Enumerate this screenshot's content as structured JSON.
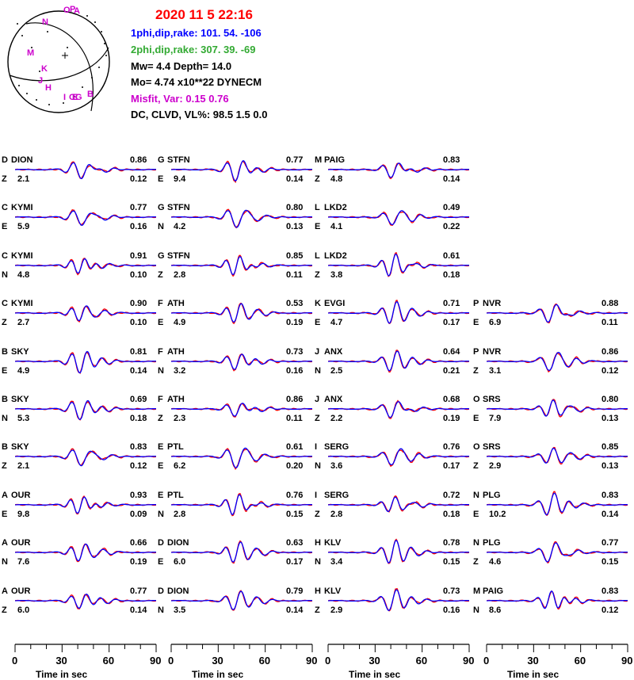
{
  "header": {
    "date": "2020 11  5    22:16",
    "plane1": "1phi,dip,rake: 101. 54. -106",
    "plane2": "2phi,dip,rake: 307. 39.  -69",
    "mw_depth": "Mw=   4.4     Depth=    14.0",
    "moment": "Mo=  4.74 x10**22 DYNECM",
    "misfit": "Misfit, Var:      0.15        0.76",
    "dc": "DC, CLVD, VL%:   98.5      1.5      0.0"
  },
  "beachball": {
    "labels": [
      "O",
      "P",
      "A",
      "N",
      "M",
      "K",
      "J",
      "H",
      "I",
      "C",
      "E",
      "G",
      "B"
    ],
    "colors": {
      "outline": "#000000",
      "label": "#cc00cc"
    }
  },
  "colors": {
    "observed": "#ff0000",
    "synthetic": "#0000ff"
  },
  "panels": [
    {
      "col": 0,
      "row": 0,
      "code": "D",
      "name": "DION",
      "comp": "Z",
      "dist": "2.1",
      "corr": "0.86",
      "amp": "0.12",
      "seed": 1
    },
    {
      "col": 0,
      "row": 1,
      "code": "C",
      "name": "KYMI",
      "comp": "E",
      "dist": "5.9",
      "corr": "0.77",
      "amp": "0.16",
      "seed": 2
    },
    {
      "col": 0,
      "row": 2,
      "code": "C",
      "name": "KYMI",
      "comp": "N",
      "dist": "4.8",
      "corr": "0.91",
      "amp": "0.10",
      "seed": 3
    },
    {
      "col": 0,
      "row": 3,
      "code": "C",
      "name": "KYMI",
      "comp": "Z",
      "dist": "2.7",
      "corr": "0.90",
      "amp": "0.10",
      "seed": 4
    },
    {
      "col": 0,
      "row": 4,
      "code": "B",
      "name": "SKY",
      "comp": "E",
      "dist": "4.9",
      "corr": "0.81",
      "amp": "0.14",
      "seed": 5
    },
    {
      "col": 0,
      "row": 5,
      "code": "B",
      "name": "SKY",
      "comp": "N",
      "dist": "5.3",
      "corr": "0.69",
      "amp": "0.18",
      "seed": 6
    },
    {
      "col": 0,
      "row": 6,
      "code": "B",
      "name": "SKY",
      "comp": "Z",
      "dist": "2.1",
      "corr": "0.83",
      "amp": "0.12",
      "seed": 7
    },
    {
      "col": 0,
      "row": 7,
      "code": "A",
      "name": "OUR",
      "comp": "E",
      "dist": "9.8",
      "corr": "0.93",
      "amp": "0.09",
      "seed": 8
    },
    {
      "col": 0,
      "row": 8,
      "code": "A",
      "name": "OUR",
      "comp": "N",
      "dist": "7.6",
      "corr": "0.66",
      "amp": "0.19",
      "seed": 9
    },
    {
      "col": 0,
      "row": 9,
      "code": "A",
      "name": "OUR",
      "comp": "Z",
      "dist": "6.0",
      "corr": "0.77",
      "amp": "0.14",
      "seed": 10
    },
    {
      "col": 1,
      "row": 0,
      "code": "G",
      "name": "STFN",
      "comp": "E",
      "dist": "9.4",
      "corr": "0.77",
      "amp": "0.14",
      "seed": 11
    },
    {
      "col": 1,
      "row": 1,
      "code": "G",
      "name": "STFN",
      "comp": "N",
      "dist": "4.2",
      "corr": "0.80",
      "amp": "0.13",
      "seed": 12
    },
    {
      "col": 1,
      "row": 2,
      "code": "G",
      "name": "STFN",
      "comp": "Z",
      "dist": "2.8",
      "corr": "0.85",
      "amp": "0.11",
      "seed": 13
    },
    {
      "col": 1,
      "row": 3,
      "code": "F",
      "name": "ATH",
      "comp": "E",
      "dist": "4.9",
      "corr": "0.53",
      "amp": "0.19",
      "seed": 14
    },
    {
      "col": 1,
      "row": 4,
      "code": "F",
      "name": "ATH",
      "comp": "N",
      "dist": "3.2",
      "corr": "0.73",
      "amp": "0.16",
      "seed": 15
    },
    {
      "col": 1,
      "row": 5,
      "code": "F",
      "name": "ATH",
      "comp": "Z",
      "dist": "2.3",
      "corr": "0.86",
      "amp": "0.11",
      "seed": 16
    },
    {
      "col": 1,
      "row": 6,
      "code": "E",
      "name": "PTL",
      "comp": "E",
      "dist": "6.2",
      "corr": "0.61",
      "amp": "0.20",
      "seed": 17
    },
    {
      "col": 1,
      "row": 7,
      "code": "E",
      "name": "PTL",
      "comp": "N",
      "dist": "2.8",
      "corr": "0.76",
      "amp": "0.15",
      "seed": 18
    },
    {
      "col": 1,
      "row": 8,
      "code": "D",
      "name": "DION",
      "comp": "E",
      "dist": "6.0",
      "corr": "0.63",
      "amp": "0.17",
      "seed": 19
    },
    {
      "col": 1,
      "row": 9,
      "code": "D",
      "name": "DION",
      "comp": "N",
      "dist": "3.5",
      "corr": "0.79",
      "amp": "0.14",
      "seed": 20
    },
    {
      "col": 2,
      "row": 0,
      "code": "M",
      "name": "PAIG",
      "comp": "Z",
      "dist": "4.8",
      "corr": "0.83",
      "amp": "0.14",
      "seed": 21
    },
    {
      "col": 2,
      "row": 1,
      "code": "L",
      "name": "LKD2",
      "comp": "E",
      "dist": "4.1",
      "corr": "0.49",
      "amp": "0.22",
      "seed": 22
    },
    {
      "col": 2,
      "row": 2,
      "code": "L",
      "name": "LKD2",
      "comp": "Z",
      "dist": "3.8",
      "corr": "0.61",
      "amp": "0.18",
      "seed": 23
    },
    {
      "col": 2,
      "row": 3,
      "code": "K",
      "name": "EVGI",
      "comp": "E",
      "dist": "4.7",
      "corr": "0.71",
      "amp": "0.17",
      "seed": 24
    },
    {
      "col": 2,
      "row": 4,
      "code": "J",
      "name": "ANX",
      "comp": "N",
      "dist": "2.5",
      "corr": "0.64",
      "amp": "0.21",
      "seed": 25
    },
    {
      "col": 2,
      "row": 5,
      "code": "J",
      "name": "ANX",
      "comp": "Z",
      "dist": "2.2",
      "corr": "0.68",
      "amp": "0.19",
      "seed": 26
    },
    {
      "col": 2,
      "row": 6,
      "code": "I",
      "name": "SERG",
      "comp": "N",
      "dist": "3.6",
      "corr": "0.76",
      "amp": "0.17",
      "seed": 27
    },
    {
      "col": 2,
      "row": 7,
      "code": "I",
      "name": "SERG",
      "comp": "Z",
      "dist": "2.8",
      "corr": "0.72",
      "amp": "0.18",
      "seed": 28
    },
    {
      "col": 2,
      "row": 8,
      "code": "H",
      "name": "KLV",
      "comp": "N",
      "dist": "3.4",
      "corr": "0.78",
      "amp": "0.15",
      "seed": 29
    },
    {
      "col": 2,
      "row": 9,
      "code": "H",
      "name": "KLV",
      "comp": "Z",
      "dist": "2.9",
      "corr": "0.73",
      "amp": "0.16",
      "seed": 30
    },
    {
      "col": 3,
      "row": 3,
      "code": "P",
      "name": "NVR",
      "comp": "E",
      "dist": "6.9",
      "corr": "0.88",
      "amp": "0.11",
      "seed": 31
    },
    {
      "col": 3,
      "row": 4,
      "code": "P",
      "name": "NVR",
      "comp": "Z",
      "dist": "3.1",
      "corr": "0.86",
      "amp": "0.12",
      "seed": 32
    },
    {
      "col": 3,
      "row": 5,
      "code": "O",
      "name": "SRS",
      "comp": "E",
      "dist": "7.9",
      "corr": "0.80",
      "amp": "0.13",
      "seed": 33
    },
    {
      "col": 3,
      "row": 6,
      "code": "O",
      "name": "SRS",
      "comp": "Z",
      "dist": "2.9",
      "corr": "0.85",
      "amp": "0.13",
      "seed": 34
    },
    {
      "col": 3,
      "row": 7,
      "code": "N",
      "name": "PLG",
      "comp": "E",
      "dist": "10.2",
      "corr": "0.83",
      "amp": "0.14",
      "seed": 35
    },
    {
      "col": 3,
      "row": 8,
      "code": "N",
      "name": "PLG",
      "comp": "Z",
      "dist": "4.6",
      "corr": "0.77",
      "amp": "0.15",
      "seed": 36
    },
    {
      "col": 3,
      "row": 9,
      "code": "M",
      "name": "PAIG",
      "comp": "N",
      "dist": "8.6",
      "corr": "0.83",
      "amp": "0.12",
      "seed": 37
    }
  ],
  "time_axis": {
    "label": "Time  in sec",
    "ticks": [
      "0",
      "30",
      "60",
      "90"
    ],
    "range": [
      0,
      90
    ]
  }
}
